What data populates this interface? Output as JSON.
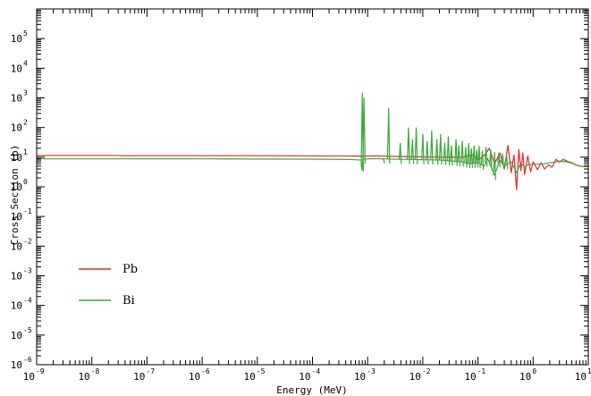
{
  "chart_data": {
    "type": "line",
    "title": "",
    "xlabel": "Energy (MeV)",
    "ylabel": "Cross Section (b)",
    "xscale": "log",
    "yscale": "log",
    "xlim": [
      1e-09,
      10
    ],
    "ylim": [
      1e-06,
      1000000.0
    ],
    "x_ticks": [
      {
        "base": "10",
        "exp": "-9"
      },
      {
        "base": "10",
        "exp": "-8"
      },
      {
        "base": "10",
        "exp": "-7"
      },
      {
        "base": "10",
        "exp": "-6"
      },
      {
        "base": "10",
        "exp": "-5"
      },
      {
        "base": "10",
        "exp": "-4"
      },
      {
        "base": "10",
        "exp": "-3"
      },
      {
        "base": "10",
        "exp": "-2"
      },
      {
        "base": "10",
        "exp": "-1"
      },
      {
        "base": "10",
        "exp": "0"
      },
      {
        "base": "10",
        "exp": "1"
      }
    ],
    "y_ticks": [
      {
        "base": "10",
        "exp": "-6"
      },
      {
        "base": "10",
        "exp": "-5"
      },
      {
        "base": "10",
        "exp": "-4"
      },
      {
        "base": "10",
        "exp": "-3"
      },
      {
        "base": "10",
        "exp": "-2"
      },
      {
        "base": "10",
        "exp": "-1"
      },
      {
        "base": "10",
        "exp": "0"
      },
      {
        "base": "10",
        "exp": "1"
      },
      {
        "base": "10",
        "exp": "2"
      },
      {
        "base": "10",
        "exp": "3"
      },
      {
        "base": "10",
        "exp": "4"
      },
      {
        "base": "10",
        "exp": "5"
      }
    ],
    "grid": false,
    "legend_position": "lower-left",
    "series": [
      {
        "name": "Pb",
        "color": "#e8262a",
        "points": [
          [
            1e-09,
            11.4
          ],
          [
            3e-08,
            11.4
          ],
          [
            3.2e-08,
            11.2
          ],
          [
            1e-06,
            11.2
          ],
          [
            1e-05,
            11.2
          ],
          [
            0.0001,
            11.0
          ],
          [
            0.0007,
            10.9
          ],
          [
            0.0015,
            11.0
          ],
          [
            0.003,
            10.6
          ],
          [
            0.005,
            10.5
          ],
          [
            0.01,
            10.2
          ],
          [
            0.02,
            10.0
          ],
          [
            0.03,
            10.1
          ],
          [
            0.05,
            9.8
          ],
          [
            0.08,
            12.0
          ],
          [
            0.1,
            8.0
          ],
          [
            0.13,
            11.5
          ],
          [
            0.16,
            20.0
          ],
          [
            0.2,
            6.0
          ],
          [
            0.25,
            14.0
          ],
          [
            0.3,
            4.0
          ],
          [
            0.35,
            25.0
          ],
          [
            0.4,
            3.0
          ],
          [
            0.45,
            12.0
          ],
          [
            0.5,
            0.8
          ],
          [
            0.55,
            18.0
          ],
          [
            0.6,
            3.5
          ],
          [
            0.65,
            14.0
          ],
          [
            0.7,
            2.6
          ],
          [
            0.8,
            11.0
          ],
          [
            0.9,
            3.2
          ],
          [
            1.0,
            7.0
          ],
          [
            1.2,
            3.8
          ],
          [
            1.4,
            6.5
          ],
          [
            1.6,
            4.0
          ],
          [
            1.9,
            5.5
          ],
          [
            2.2,
            4.6
          ],
          [
            2.6,
            8.5
          ],
          [
            3.0,
            6.8
          ],
          [
            3.5,
            8.5
          ],
          [
            4.2,
            7.2
          ],
          [
            5.0,
            6.5
          ],
          [
            6.0,
            5.4
          ],
          [
            7.5,
            4.9
          ],
          [
            10,
            4.8
          ]
        ],
        "spikes": []
      },
      {
        "name": "Bi",
        "color": "#3aa83a",
        "points": [
          [
            1e-09,
            8.8
          ],
          [
            1e-06,
            8.8
          ],
          [
            1e-05,
            8.7
          ],
          [
            0.0001,
            8.6
          ],
          [
            0.0005,
            8.4
          ],
          [
            0.00076,
            8.0
          ],
          [
            0.00079,
            3.6
          ],
          [
            0.00082,
            8.5
          ],
          [
            0.0012,
            9.0
          ],
          [
            0.002,
            8.8
          ],
          [
            0.003,
            8.5
          ],
          [
            0.005,
            8.5
          ],
          [
            0.01,
            8.2
          ],
          [
            0.02,
            8.0
          ],
          [
            0.03,
            7.5
          ],
          [
            0.05,
            7.0
          ],
          [
            0.07,
            6.0
          ],
          [
            0.1,
            6.5
          ],
          [
            0.13,
            5.0
          ],
          [
            0.15,
            9.0
          ],
          [
            0.2,
            2.5
          ],
          [
            0.25,
            8.0
          ],
          [
            0.3,
            5.0
          ],
          [
            0.4,
            7.0
          ],
          [
            0.5,
            3.0
          ],
          [
            0.6,
            6.5
          ],
          [
            0.7,
            4.5
          ],
          [
            0.8,
            5.5
          ],
          [
            1.0,
            5.8
          ],
          [
            1.5,
            5.9
          ],
          [
            2.0,
            6.5
          ],
          [
            3.0,
            7.3
          ],
          [
            4.0,
            7.0
          ],
          [
            5.0,
            6.3
          ],
          [
            7.0,
            5.0
          ],
          [
            10,
            4.8
          ]
        ],
        "spikes": [
          [
            0.0008,
            1500
          ],
          [
            0.00086,
            1000
          ],
          [
            0.00195,
            8.2
          ],
          [
            0.0024,
            450
          ],
          [
            0.0039,
            30
          ],
          [
            0.0055,
            100
          ],
          [
            0.0065,
            40
          ],
          [
            0.0076,
            100
          ],
          [
            0.01,
            60
          ],
          [
            0.012,
            35
          ],
          [
            0.0145,
            80
          ],
          [
            0.018,
            40
          ],
          [
            0.021,
            60
          ],
          [
            0.025,
            30
          ],
          [
            0.029,
            50
          ],
          [
            0.033,
            25
          ],
          [
            0.04,
            40
          ],
          [
            0.045,
            25
          ],
          [
            0.052,
            35
          ],
          [
            0.06,
            22
          ],
          [
            0.068,
            30
          ],
          [
            0.076,
            20
          ],
          [
            0.085,
            25
          ],
          [
            0.095,
            18
          ],
          [
            0.105,
            24
          ],
          [
            0.12,
            17
          ],
          [
            0.14,
            22
          ],
          [
            0.17,
            18
          ],
          [
            0.2,
            15
          ],
          [
            0.24,
            14
          ],
          [
            0.28,
            13
          ],
          [
            0.33,
            12
          ]
        ]
      }
    ]
  }
}
